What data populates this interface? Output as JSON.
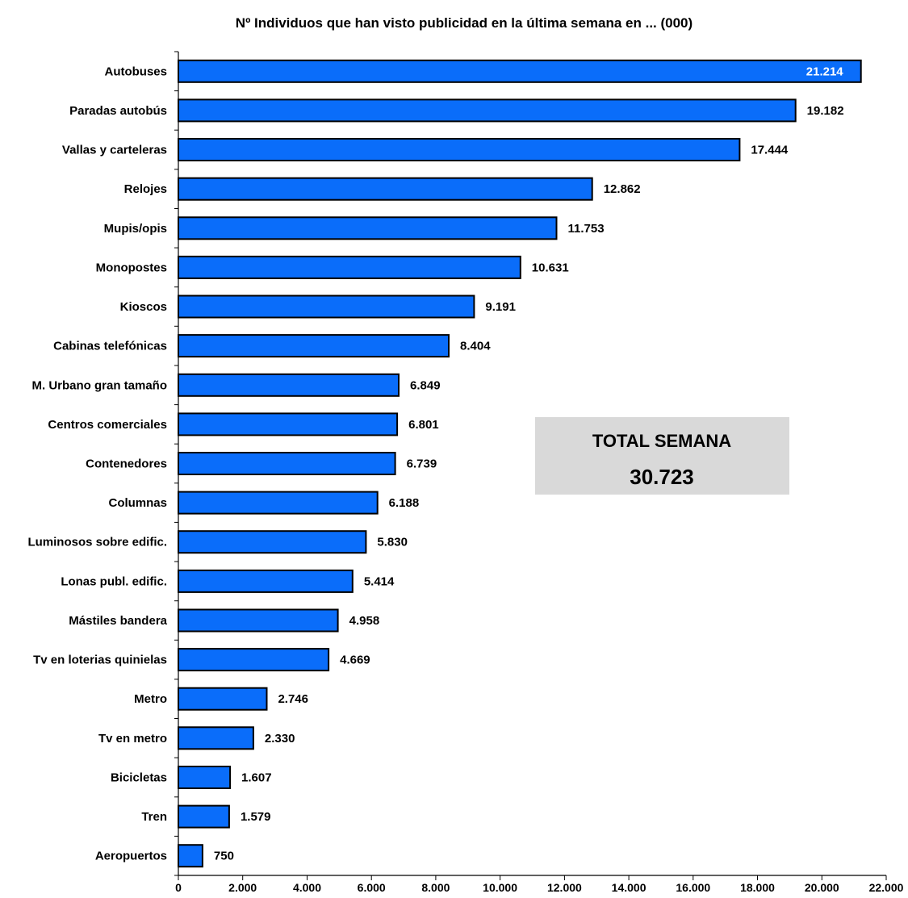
{
  "chart_data": {
    "type": "bar",
    "orientation": "horizontal",
    "title": "Nº Individuos que han visto publicidad en la última semana en ... (000)",
    "categories": [
      "Autobuses",
      "Paradas autobús",
      "Vallas y carteleras",
      "Relojes",
      "Mupis/opis",
      "Monopostes",
      "Kioscos",
      "Cabinas telefónicas",
      "M. Urbano gran tamaño",
      "Centros comerciales",
      "Contenedores",
      "Columnas",
      "Luminosos sobre edific.",
      "Lonas publ. edific.",
      "Mástiles bandera",
      "Tv en loterias quinielas",
      "Metro",
      "Tv en metro",
      "Bicicletas",
      "Tren",
      "Aeropuertos"
    ],
    "values": [
      21214,
      19182,
      17444,
      12862,
      11753,
      10631,
      9191,
      8404,
      6849,
      6801,
      6739,
      6188,
      5830,
      5414,
      4958,
      4669,
      2746,
      2330,
      1607,
      1579,
      750
    ],
    "value_labels": [
      "21.214",
      "19.182",
      "17.444",
      "12.862",
      "11.753",
      "10.631",
      "9.191",
      "8.404",
      "6.849",
      "6.801",
      "6.739",
      "6.188",
      "5.830",
      "5.414",
      "4.958",
      "4.669",
      "2.746",
      "2.330",
      "1.607",
      "1.579",
      "750"
    ],
    "x_ticks": [
      0,
      2000,
      4000,
      6000,
      8000,
      10000,
      12000,
      14000,
      16000,
      18000,
      20000,
      22000
    ],
    "x_tick_labels": [
      "0",
      "2.000",
      "4.000",
      "6.000",
      "8.000",
      "10.000",
      "12.000",
      "14.000",
      "16.000",
      "18.000",
      "20.000",
      "22.000"
    ],
    "xlim": [
      0,
      22000
    ],
    "grid": false,
    "colors": {
      "bar": "#0a6dfa",
      "bar_border": "#000000",
      "total_box": "#d9d9d9"
    }
  },
  "total_box": {
    "title": "TOTAL SEMANA",
    "value": "30.723"
  }
}
